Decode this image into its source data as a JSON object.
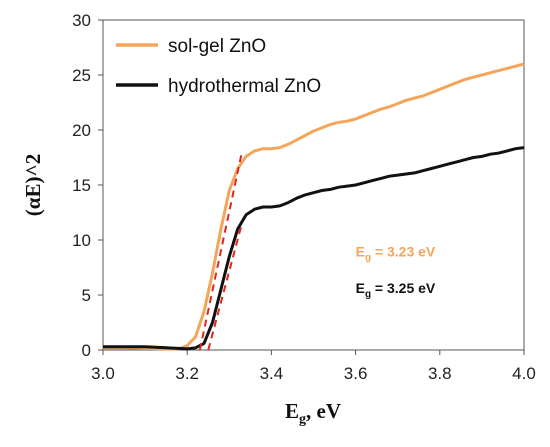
{
  "chart_data": {
    "type": "line",
    "xlabel": {
      "main": "E",
      "sub": "g",
      "rest": ", eV"
    },
    "ylabel": "(αE)^2",
    "xlim": [
      3.0,
      4.0
    ],
    "ylim": [
      0,
      30
    ],
    "x_ticks": [
      3.0,
      3.2,
      3.4,
      3.6,
      3.8,
      4.0
    ],
    "x_tick_labels": [
      "3.0",
      "3.2",
      "3.4",
      "3.6",
      "3.8",
      "4.0"
    ],
    "y_ticks": [
      0,
      5,
      10,
      15,
      20,
      25,
      30
    ],
    "y_tick_labels": [
      "0",
      "5",
      "10",
      "15",
      "20",
      "25",
      "30"
    ],
    "grid": false,
    "legend_position": "top-left",
    "series": [
      {
        "name": "sol-gel ZnO",
        "color": "#F4A55A",
        "points": [
          [
            3.0,
            0.2
          ],
          [
            3.05,
            0.2
          ],
          [
            3.1,
            0.15
          ],
          [
            3.15,
            0.1
          ],
          [
            3.18,
            0.1
          ],
          [
            3.2,
            0.4
          ],
          [
            3.22,
            1.2
          ],
          [
            3.24,
            3.5
          ],
          [
            3.26,
            7.0
          ],
          [
            3.28,
            11.0
          ],
          [
            3.3,
            14.5
          ],
          [
            3.32,
            16.5
          ],
          [
            3.34,
            17.6
          ],
          [
            3.36,
            18.1
          ],
          [
            3.38,
            18.3
          ],
          [
            3.4,
            18.3
          ],
          [
            3.42,
            18.4
          ],
          [
            3.44,
            18.7
          ],
          [
            3.46,
            19.1
          ],
          [
            3.48,
            19.5
          ],
          [
            3.5,
            19.9
          ],
          [
            3.52,
            20.2
          ],
          [
            3.54,
            20.5
          ],
          [
            3.56,
            20.7
          ],
          [
            3.58,
            20.8
          ],
          [
            3.6,
            21.0
          ],
          [
            3.62,
            21.3
          ],
          [
            3.64,
            21.6
          ],
          [
            3.66,
            21.9
          ],
          [
            3.68,
            22.1
          ],
          [
            3.7,
            22.4
          ],
          [
            3.72,
            22.7
          ],
          [
            3.74,
            22.9
          ],
          [
            3.76,
            23.1
          ],
          [
            3.78,
            23.4
          ],
          [
            3.8,
            23.7
          ],
          [
            3.82,
            24.0
          ],
          [
            3.84,
            24.3
          ],
          [
            3.86,
            24.6
          ],
          [
            3.88,
            24.8
          ],
          [
            3.9,
            25.0
          ],
          [
            3.92,
            25.2
          ],
          [
            3.94,
            25.4
          ],
          [
            3.96,
            25.6
          ],
          [
            3.98,
            25.8
          ],
          [
            4.0,
            26.0
          ]
        ]
      },
      {
        "name": "hydrothermal ZnO",
        "color": "#111111",
        "points": [
          [
            3.0,
            0.3
          ],
          [
            3.05,
            0.3
          ],
          [
            3.1,
            0.3
          ],
          [
            3.15,
            0.2
          ],
          [
            3.2,
            0.1
          ],
          [
            3.22,
            0.2
          ],
          [
            3.24,
            0.6
          ],
          [
            3.26,
            2.5
          ],
          [
            3.28,
            5.5
          ],
          [
            3.3,
            8.5
          ],
          [
            3.32,
            11.0
          ],
          [
            3.34,
            12.3
          ],
          [
            3.36,
            12.8
          ],
          [
            3.38,
            13.0
          ],
          [
            3.4,
            13.0
          ],
          [
            3.42,
            13.1
          ],
          [
            3.44,
            13.4
          ],
          [
            3.46,
            13.8
          ],
          [
            3.48,
            14.1
          ],
          [
            3.5,
            14.3
          ],
          [
            3.52,
            14.5
          ],
          [
            3.54,
            14.6
          ],
          [
            3.56,
            14.8
          ],
          [
            3.58,
            14.9
          ],
          [
            3.6,
            15.0
          ],
          [
            3.62,
            15.2
          ],
          [
            3.64,
            15.4
          ],
          [
            3.66,
            15.6
          ],
          [
            3.68,
            15.8
          ],
          [
            3.7,
            15.9
          ],
          [
            3.72,
            16.0
          ],
          [
            3.74,
            16.1
          ],
          [
            3.76,
            16.3
          ],
          [
            3.78,
            16.5
          ],
          [
            3.8,
            16.7
          ],
          [
            3.82,
            16.9
          ],
          [
            3.84,
            17.1
          ],
          [
            3.86,
            17.3
          ],
          [
            3.88,
            17.5
          ],
          [
            3.9,
            17.6
          ],
          [
            3.92,
            17.8
          ],
          [
            3.94,
            17.9
          ],
          [
            3.96,
            18.1
          ],
          [
            3.98,
            18.3
          ],
          [
            4.0,
            18.4
          ]
        ]
      }
    ],
    "tangent_lines": [
      {
        "color": "#E0251C",
        "points": [
          [
            3.23,
            0.0
          ],
          [
            3.33,
            18.0
          ]
        ]
      },
      {
        "color": "#E0251C",
        "points": [
          [
            3.25,
            0.0
          ],
          [
            3.33,
            11.5
          ]
        ]
      }
    ],
    "annotations": [
      {
        "main": "E",
        "sub": "g",
        "text": " = 3.23 eV",
        "color": "#F4A55A",
        "x": 3.6,
        "y": 8.5
      },
      {
        "main": "E",
        "sub": "g",
        "text": " = 3.25 eV",
        "color": "#111111",
        "x": 3.6,
        "y": 5.2
      }
    ]
  }
}
